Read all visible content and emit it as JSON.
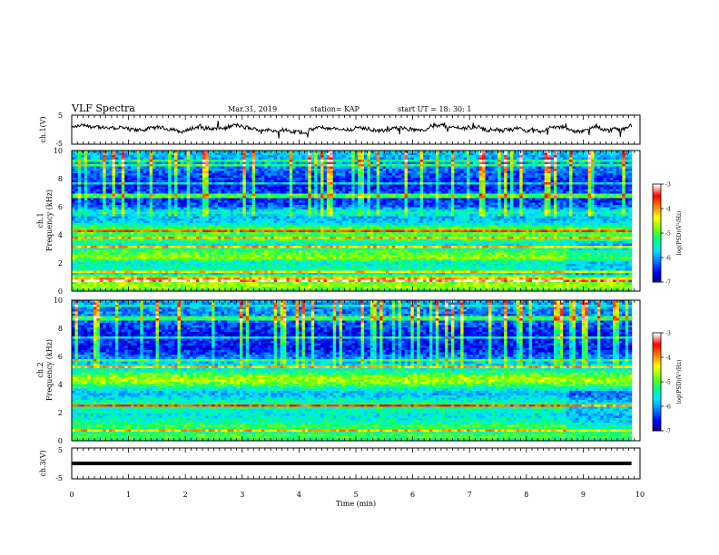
{
  "header": {
    "title": "VLF Spectra",
    "date": "Mar.31, 2019",
    "station": "station= KAP",
    "start": "start  UT =   18: 30: 1"
  },
  "colorbar": {
    "label": "log(PSD)(V²/Hz)",
    "ticks": [
      "-3",
      "-4",
      "-5",
      "-6",
      "-7"
    ]
  },
  "colors": {
    "scale": [
      "#000080",
      "#0000ff",
      "#0080ff",
      "#00e5ff",
      "#00ff80",
      "#80ff00",
      "#ffff00",
      "#ff8000",
      "#ff0000",
      "#ffffff"
    ],
    "trace": "#000000"
  },
  "chart_data": [
    {
      "type": "line",
      "panel": "ch1-waveform",
      "ylabel": "ch.1(V)",
      "ylim": [
        -5,
        5
      ],
      "yticks": [
        "5",
        "-5"
      ],
      "xlim": [
        0,
        10
      ],
      "series": [
        {
          "description_free": true,
          "level": 0.5,
          "noise_amplitude": 1.2
        }
      ]
    },
    {
      "type": "heatmap",
      "panel": "ch1-spectrogram",
      "ylabel_top": "ch.1",
      "ylabel": "Frequency (kHz)",
      "ylim": [
        0,
        10
      ],
      "yticks": [
        "10",
        "8",
        "6",
        "4",
        "2",
        "0"
      ],
      "xlim": [
        0,
        10
      ],
      "data_end_min": 9.85,
      "zlim": [
        -7,
        -3
      ],
      "freq_profile_log_psd": [
        [
          0.0,
          -5.2
        ],
        [
          0.3,
          -4.6
        ],
        [
          0.6,
          -4.8
        ],
        [
          0.9,
          -4.0
        ],
        [
          1.2,
          -5.6
        ],
        [
          1.6,
          -5.3
        ],
        [
          2.0,
          -5.5
        ],
        [
          2.4,
          -4.7
        ],
        [
          2.8,
          -5.0
        ],
        [
          3.2,
          -5.7
        ],
        [
          3.6,
          -5.2
        ],
        [
          4.0,
          -5.0
        ],
        [
          4.4,
          -4.8
        ],
        [
          4.8,
          -5.6
        ],
        [
          5.2,
          -5.9
        ],
        [
          5.6,
          -5.4
        ],
        [
          6.0,
          -6.2
        ],
        [
          6.5,
          -6.5
        ],
        [
          7.0,
          -6.3
        ],
        [
          7.5,
          -6.6
        ],
        [
          8.0,
          -6.4
        ],
        [
          8.5,
          -6.2
        ],
        [
          9.0,
          -6.0
        ],
        [
          9.5,
          -5.9
        ],
        [
          10.0,
          -5.7
        ]
      ],
      "step_change_at_min": 8.65
    },
    {
      "type": "heatmap",
      "panel": "ch2-spectrogram",
      "ylabel_top": "ch.2",
      "ylabel": "Frequency (kHz)",
      "ylim": [
        0,
        10
      ],
      "yticks": [
        "10",
        "8",
        "6",
        "4",
        "2",
        "0"
      ],
      "xlim": [
        0,
        10
      ],
      "data_end_min": 9.85,
      "zlim": [
        -7,
        -3
      ],
      "freq_profile_log_psd": [
        [
          0.0,
          -5.4
        ],
        [
          0.3,
          -4.9
        ],
        [
          0.6,
          -5.3
        ],
        [
          1.0,
          -5.0
        ],
        [
          1.4,
          -5.4
        ],
        [
          1.8,
          -5.6
        ],
        [
          2.2,
          -5.4
        ],
        [
          2.6,
          -5.2
        ],
        [
          3.0,
          -5.6
        ],
        [
          3.4,
          -5.9
        ],
        [
          3.8,
          -5.3
        ],
        [
          4.2,
          -4.6
        ],
        [
          4.6,
          -4.8
        ],
        [
          5.0,
          -5.4
        ],
        [
          5.4,
          -5.7
        ],
        [
          5.8,
          -6.0
        ],
        [
          6.2,
          -6.3
        ],
        [
          6.6,
          -6.6
        ],
        [
          7.0,
          -6.4
        ],
        [
          7.5,
          -6.6
        ],
        [
          8.0,
          -6.4
        ],
        [
          8.5,
          -6.2
        ],
        [
          9.0,
          -6.1
        ],
        [
          9.5,
          -6.0
        ],
        [
          10.0,
          -5.9
        ]
      ],
      "step_change_at_min": 8.65
    },
    {
      "type": "line",
      "panel": "ch3-waveform",
      "ylabel": "ch.3(V)",
      "ylim": [
        -5,
        5
      ],
      "yticks": [
        "5",
        "-5"
      ],
      "xlim": [
        0,
        10
      ],
      "series": [
        {
          "level": 0,
          "noise_amplitude": 0
        }
      ]
    }
  ],
  "xaxis": {
    "label": "Time (min)",
    "ticks": [
      "0",
      "1",
      "2",
      "3",
      "4",
      "5",
      "6",
      "7",
      "8",
      "9",
      "10"
    ]
  }
}
